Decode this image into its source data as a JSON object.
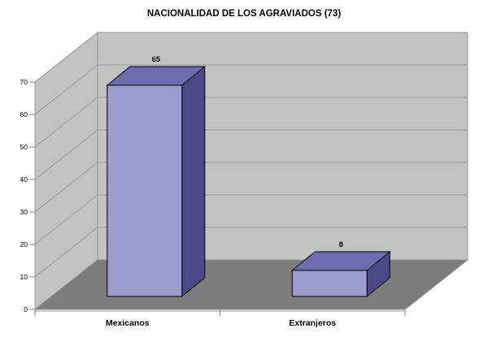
{
  "chart_data": {
    "type": "bar",
    "subtype": "3d-column",
    "title": "NACIONALIDAD DE LOS AGRAVIADOS (73)",
    "categories": [
      "Mexicanos",
      "Extranjeros"
    ],
    "values": [
      65,
      8
    ],
    "data_labels": [
      "65",
      "8"
    ],
    "xlabel": "",
    "ylabel": "",
    "ylim": [
      0,
      70
    ],
    "yticks": [
      0,
      10,
      20,
      30,
      40,
      50,
      60,
      70
    ],
    "grid": true,
    "legend": "none",
    "value_labels_shown": true,
    "colors": {
      "bar_front": "#9B9BCE",
      "bar_top": "#6C6CAF",
      "bar_side": "#4A4A88",
      "bar_outline": "#000000",
      "wall": "#C3C3C3",
      "floor": "#7D7D7D",
      "floor_edge_highlight": "#B8B8B8",
      "gridline": "#9B9B9B",
      "tick": "#848484",
      "text": "#000000",
      "background": "#FFFFFF"
    }
  }
}
